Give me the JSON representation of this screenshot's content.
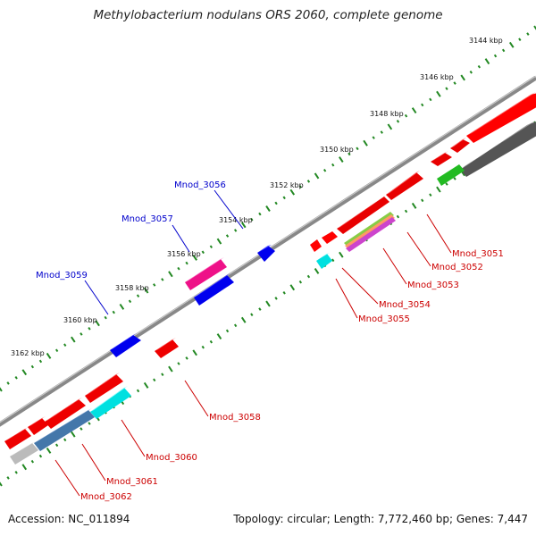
{
  "title": "Methylobacterium nodulans ORS 2060, complete genome",
  "accession": "Accession: NC_011894",
  "stats": "Topology: circular; Length: 7,772,460 bp; Genes: 7,447",
  "colors": {
    "forward": "#ff0000",
    "reverse": "#0000ff",
    "backbone": "#777777",
    "ticks": "#228822",
    "label_forward": "#cc0000",
    "label_reverse": "#0000cc"
  },
  "kbp_labels": [
    "3144 kbp",
    "3146 kbp",
    "3148 kbp",
    "3150 kbp",
    "3152 kbp",
    "3154 kbp",
    "3156 kbp",
    "3158 kbp",
    "3160 kbp",
    "3162 kbp"
  ],
  "gene_labels_forward": [
    "Mnod_3051",
    "Mnod_3052",
    "Mnod_3053",
    "Mnod_3054",
    "Mnod_3055",
    "Mnod_3058",
    "Mnod_3060",
    "Mnod_3061",
    "Mnod_3062"
  ],
  "gene_labels_reverse": [
    "Mnod_3056",
    "Mnod_3057",
    "Mnod_3059"
  ]
}
